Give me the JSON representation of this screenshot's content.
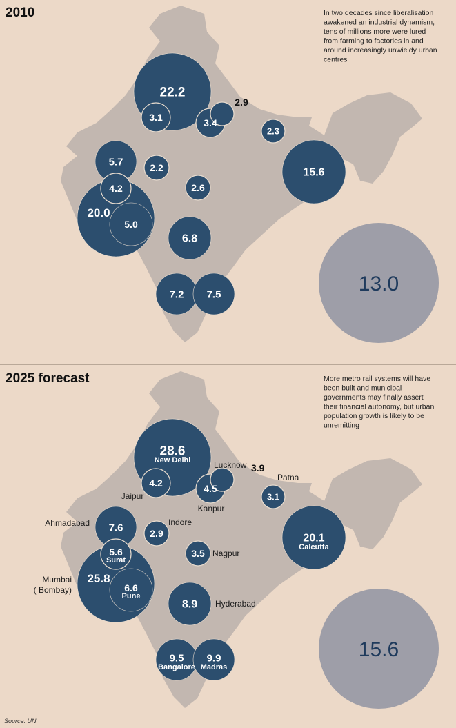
{
  "colors": {
    "background": "#ecd9c8",
    "map": "#c2b7b0",
    "bubble": "#2c4e6e",
    "total_bubble": "#9e9ea8",
    "total_text": "#1e3a5c"
  },
  "source": "Source: UN",
  "chart_data": [
    {
      "type": "bubble-map",
      "title": "2010",
      "note": [
        "In two decades since liberalisation",
        "awakened an industrial dynamism,",
        "tens of millions more were lured",
        "from farming to factories in and",
        "around increasingly unwieldy urban",
        "centres"
      ],
      "total": "13.0",
      "cities": [
        {
          "id": "new-delhi",
          "value": "22.2"
        },
        {
          "id": "jaipur",
          "value": "3.1"
        },
        {
          "id": "kanpur",
          "value": "3.4"
        },
        {
          "id": "lucknow",
          "value": "2.9"
        },
        {
          "id": "patna",
          "value": "2.3"
        },
        {
          "id": "calcutta",
          "value": "15.6"
        },
        {
          "id": "ahmadabad",
          "value": "5.7"
        },
        {
          "id": "indore",
          "value": "2.2"
        },
        {
          "id": "surat",
          "value": "4.2"
        },
        {
          "id": "nagpur",
          "value": "2.6"
        },
        {
          "id": "mumbai",
          "value": "20.0"
        },
        {
          "id": "pune",
          "value": "5.0"
        },
        {
          "id": "hyderabad",
          "value": "6.8"
        },
        {
          "id": "bangalore",
          "value": "7.2"
        },
        {
          "id": "madras",
          "value": "7.5"
        }
      ]
    },
    {
      "type": "bubble-map",
      "title": "2025 forecast",
      "note": [
        "More metro rail systems will have",
        "been built and municipal",
        "governments may finally assert",
        "their financial autonomy, but urban",
        "population growth is likely to be",
        "unremitting"
      ],
      "total": "15.6",
      "cities": [
        {
          "id": "new-delhi",
          "value": "28.6",
          "name": "New Delhi"
        },
        {
          "id": "jaipur",
          "value": "4.2",
          "name": "Jaipur"
        },
        {
          "id": "kanpur",
          "value": "4.5",
          "name": "Kanpur"
        },
        {
          "id": "lucknow",
          "value": "3.9",
          "name": "Lucknow"
        },
        {
          "id": "patna",
          "value": "3.1",
          "name": "Patna"
        },
        {
          "id": "calcutta",
          "value": "20.1",
          "name": "Calcutta"
        },
        {
          "id": "ahmadabad",
          "value": "7.6",
          "name": "Ahmadabad"
        },
        {
          "id": "indore",
          "value": "2.9",
          "name": "Indore"
        },
        {
          "id": "surat",
          "value": "5.6",
          "name": "Surat"
        },
        {
          "id": "nagpur",
          "value": "3.5",
          "name": "Nagpur"
        },
        {
          "id": "mumbai",
          "value": "25.8",
          "name": "Mumbai",
          "name_extra": "( Bombay)"
        },
        {
          "id": "pune",
          "value": "6.6",
          "name": "Pune"
        },
        {
          "id": "hyderabad",
          "value": "8.9",
          "name": "Hyderabad"
        },
        {
          "id": "bangalore",
          "value": "9.5",
          "name": "Bangalore"
        },
        {
          "id": "madras",
          "value": "9.9",
          "name": "Madras"
        }
      ]
    }
  ]
}
